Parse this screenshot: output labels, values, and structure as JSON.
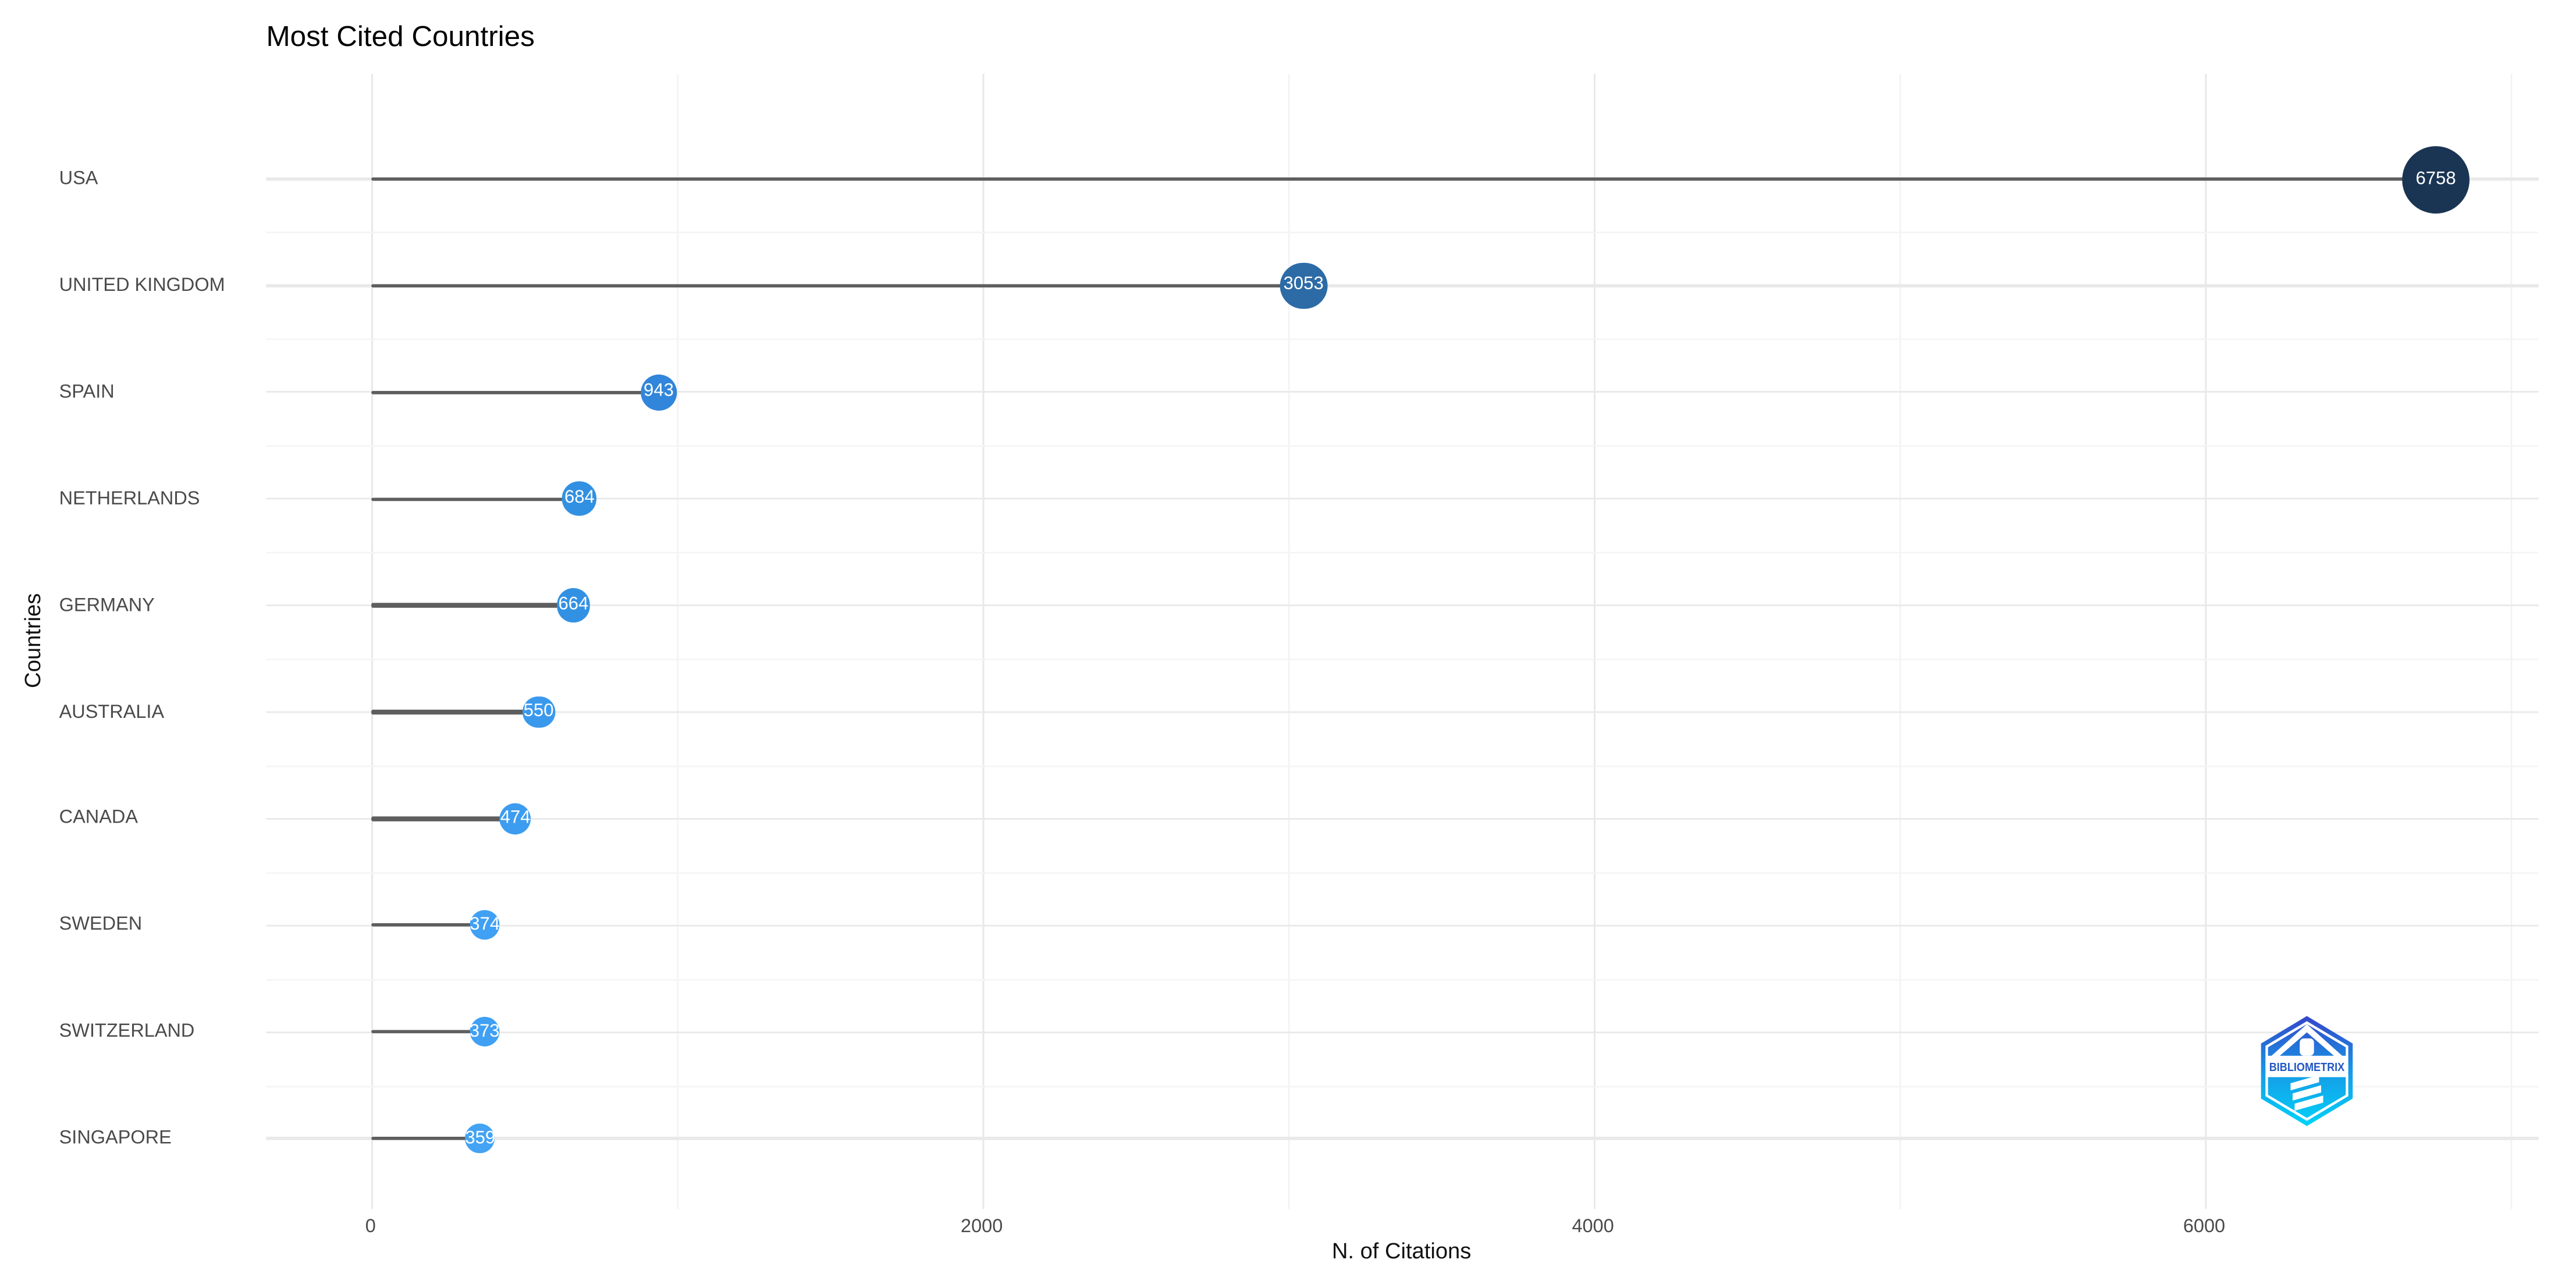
{
  "title": "Most Cited Countries",
  "chart_data": {
    "type": "scatter",
    "subtype": "lollipop-bubble",
    "title": "Most Cited Countries",
    "xlabel": "N. of Citations",
    "ylabel": "Countries",
    "x_major_ticks": [
      0,
      2000,
      4000,
      6000
    ],
    "x_minor_gridlines": [
      1000,
      3000,
      5000,
      7000
    ],
    "xlim": [
      -339,
      7097
    ],
    "grid": true,
    "legend_position": "none",
    "background_color": "#ffffff",
    "grid_major_color": "#e9e9e9",
    "grid_minor_color": "#f5f5f5",
    "stem_color": "#5e5e5e",
    "axis_text_color": "#4a4a4a",
    "value_label_color": "#ffffff",
    "categories": [
      "USA",
      "UNITED KINGDOM",
      "SPAIN",
      "NETHERLANDS",
      "GERMANY",
      "AUSTRALIA",
      "CANADA",
      "SWEDEN",
      "SWITZERLAND",
      "SINGAPORE"
    ],
    "values": [
      6758,
      3053,
      943,
      684,
      664,
      550,
      474,
      374,
      373,
      359
    ],
    "point_colors": [
      "#1a3553",
      "#2d6ba6",
      "#3185da",
      "#3290e2",
      "#3391e3",
      "#3a99ed",
      "#3c9cf0",
      "#40a0f3",
      "#40a0f3",
      "#44a3f3"
    ],
    "point_radii": [
      20.5,
      14.2,
      11.3,
      10.3,
      10.2,
      9.8,
      9.5,
      9.0,
      9.0,
      8.9
    ]
  },
  "logo": {
    "text": "BIBLIOMETRIX",
    "gradient_top": "#3446c9",
    "gradient_mid": "#159fe8",
    "gradient_bottom": "#00d3f8",
    "text_color": "#2257c4"
  }
}
